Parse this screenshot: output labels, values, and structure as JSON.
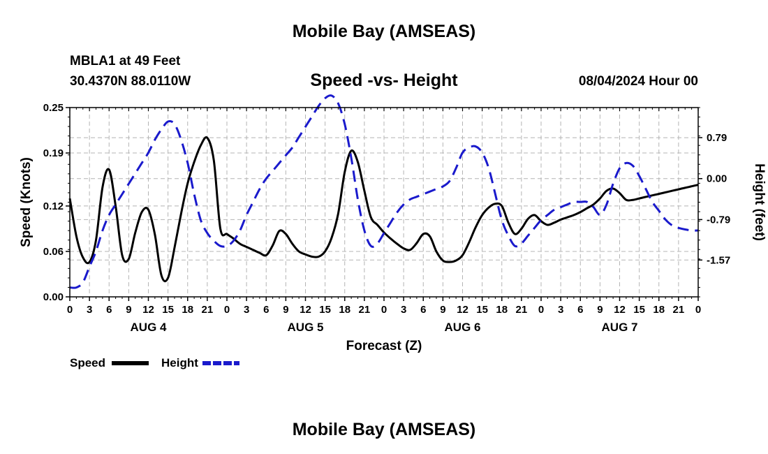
{
  "header": {
    "title": "Mobile Bay (AMSEAS)",
    "station": "MBLA1 at 49 Feet",
    "coords": "30.4370N  88.0110W",
    "subtitle": "Speed -vs- Height",
    "run_time": "08/04/2024 Hour 00"
  },
  "footer": {
    "title": "Mobile Bay (AMSEAS)"
  },
  "chart_data": {
    "type": "line",
    "title": "Speed -vs- Height",
    "xlabel": "Forecast (Z)",
    "ylabel": "Speed (Knots)",
    "y2label": "Height (feet)",
    "xlim": [
      0,
      96
    ],
    "ylim": [
      0,
      0.25
    ],
    "y2lim": [
      -2.28,
      1.37
    ],
    "x_tick_labels": [
      "0",
      "3",
      "6",
      "9",
      "12",
      "15",
      "18",
      "21",
      "0",
      "3",
      "6",
      "9",
      "12",
      "15",
      "18",
      "21",
      "0",
      "3",
      "6",
      "9",
      "12",
      "15",
      "18",
      "21",
      "0",
      "3",
      "6",
      "9",
      "12",
      "15",
      "18",
      "21",
      "0"
    ],
    "day_labels": [
      {
        "label": "AUG 4",
        "x": 12
      },
      {
        "label": "AUG 5",
        "x": 36
      },
      {
        "label": "AUG 6",
        "x": 60
      },
      {
        "label": "AUG 7",
        "x": 84
      }
    ],
    "y_ticks": [
      0.0,
      0.06,
      0.12,
      0.19,
      0.25
    ],
    "y_tick_labels": [
      "0.00",
      "0.06",
      "0.12",
      "0.19",
      "0.25"
    ],
    "y2_ticks": [
      0.79,
      0.0,
      -0.79,
      -1.57
    ],
    "y2_tick_labels": [
      "0.79",
      "0.00",
      "-0.79",
      "-1.57"
    ],
    "grid": true,
    "legend_position": "bottom-left",
    "series": [
      {
        "name": "Speed",
        "axis": "left",
        "color": "#000000",
        "style": "solid",
        "x": [
          0,
          1,
          2,
          3,
          4,
          5,
          6,
          7,
          8,
          9,
          10,
          11,
          12,
          13,
          14,
          15,
          16,
          17,
          18,
          19,
          20,
          21,
          22,
          23,
          24,
          25,
          26,
          27,
          28,
          29,
          30,
          31,
          32,
          33,
          34,
          35,
          36,
          37,
          38,
          39,
          40,
          41,
          42,
          43,
          44,
          45,
          46,
          47,
          48,
          49,
          50,
          51,
          52,
          53,
          54,
          55,
          56,
          57,
          58,
          59,
          60,
          61,
          62,
          63,
          64,
          65,
          66,
          67,
          68,
          69,
          70,
          71,
          72,
          73,
          74,
          75,
          76,
          77,
          78,
          79,
          80,
          81,
          82,
          83,
          84,
          85,
          86,
          87,
          88,
          89,
          90,
          91,
          92,
          93,
          94,
          95,
          96
        ],
        "values": [
          0.13,
          0.08,
          0.052,
          0.046,
          0.075,
          0.145,
          0.168,
          0.12,
          0.055,
          0.05,
          0.085,
          0.112,
          0.115,
          0.082,
          0.028,
          0.025,
          0.065,
          0.11,
          0.15,
          0.178,
          0.2,
          0.21,
          0.18,
          0.09,
          0.083,
          0.077,
          0.07,
          0.066,
          0.062,
          0.058,
          0.055,
          0.068,
          0.087,
          0.083,
          0.07,
          0.06,
          0.056,
          0.053,
          0.053,
          0.06,
          0.078,
          0.11,
          0.165,
          0.193,
          0.178,
          0.14,
          0.105,
          0.095,
          0.085,
          0.077,
          0.07,
          0.064,
          0.062,
          0.071,
          0.083,
          0.08,
          0.06,
          0.048,
          0.046,
          0.048,
          0.055,
          0.072,
          0.092,
          0.108,
          0.118,
          0.123,
          0.12,
          0.098,
          0.083,
          0.09,
          0.103,
          0.108,
          0.1,
          0.095,
          0.098,
          0.102,
          0.105,
          0.108,
          0.112,
          0.117,
          0.122,
          0.13,
          0.14,
          0.143,
          0.137,
          0.128,
          0.128,
          0.13,
          0.132,
          0.134,
          0.136,
          0.138,
          0.14,
          0.142,
          0.144,
          0.146,
          0.148
        ]
      },
      {
        "name": "Height",
        "axis": "right",
        "color": "#1a1acc",
        "style": "dashed",
        "x": [
          0,
          1,
          2,
          3,
          4,
          5,
          6,
          7,
          8,
          9,
          10,
          11,
          12,
          13,
          14,
          15,
          16,
          17,
          18,
          19,
          20,
          21,
          22,
          23,
          24,
          25,
          26,
          27,
          28,
          29,
          30,
          31,
          32,
          33,
          34,
          35,
          36,
          37,
          38,
          39,
          40,
          41,
          42,
          43,
          44,
          45,
          46,
          47,
          48,
          49,
          50,
          51,
          52,
          53,
          54,
          55,
          56,
          57,
          58,
          59,
          60,
          61,
          62,
          63,
          64,
          65,
          66,
          67,
          68,
          69,
          70,
          71,
          72,
          73,
          74,
          75,
          76,
          77,
          78,
          79,
          80,
          81,
          82,
          83,
          84,
          85,
          86,
          87,
          88,
          89,
          90,
          91,
          92,
          93,
          94,
          95,
          96
        ],
        "values": [
          -2.1,
          -2.1,
          -2.0,
          -1.7,
          -1.4,
          -1.0,
          -0.7,
          -0.5,
          -0.3,
          -0.1,
          0.1,
          0.3,
          0.5,
          0.75,
          0.95,
          1.1,
          1.05,
          0.75,
          0.3,
          -0.3,
          -0.8,
          -1.05,
          -1.2,
          -1.3,
          -1.3,
          -1.2,
          -1.0,
          -0.7,
          -0.45,
          -0.2,
          0.0,
          0.15,
          0.3,
          0.45,
          0.6,
          0.8,
          1.0,
          1.2,
          1.4,
          1.55,
          1.6,
          1.45,
          1.05,
          0.4,
          -0.4,
          -1.0,
          -1.3,
          -1.25,
          -1.05,
          -0.85,
          -0.65,
          -0.5,
          -0.4,
          -0.35,
          -0.3,
          -0.25,
          -0.2,
          -0.15,
          -0.05,
          0.2,
          0.5,
          0.6,
          0.62,
          0.5,
          0.2,
          -0.3,
          -0.8,
          -1.1,
          -1.3,
          -1.25,
          -1.1,
          -0.95,
          -0.8,
          -0.7,
          -0.6,
          -0.55,
          -0.5,
          -0.45,
          -0.45,
          -0.45,
          -0.55,
          -0.7,
          -0.5,
          -0.1,
          0.2,
          0.3,
          0.25,
          0.05,
          -0.2,
          -0.45,
          -0.62,
          -0.79,
          -0.9,
          -0.95,
          -0.98,
          -1.0,
          -1.0
        ]
      }
    ]
  }
}
